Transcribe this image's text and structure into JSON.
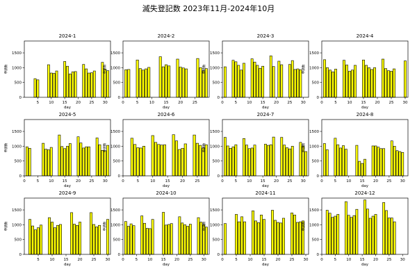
{
  "page": {
    "title": "滅失登記数 2023年11月-2024年10月"
  },
  "colors": {
    "bar_fill": "#ffff00",
    "bar_stroke": "#000000",
    "axis": "#000000"
  },
  "chart_data": [
    {
      "type": "bar",
      "title": "2024-1",
      "xlabel": "day",
      "ylabel": "申請数",
      "xlim": [
        0,
        32
      ],
      "ylim": [
        0,
        1900
      ],
      "xticks": [
        5,
        10,
        15,
        20,
        25,
        30
      ],
      "yticks": [
        0,
        500,
        1000,
        1500
      ],
      "x": [
        4,
        5,
        9,
        10,
        11,
        12,
        15,
        16,
        17,
        18,
        19,
        22,
        23,
        24,
        25,
        26,
        29,
        30,
        31
      ],
      "values": [
        630,
        590,
        1100,
        820,
        810,
        890,
        1210,
        1050,
        790,
        860,
        870,
        1110,
        960,
        820,
        830,
        890,
        1180,
        950,
        900
      ]
    },
    {
      "type": "bar",
      "title": "2024-2",
      "xlabel": "day",
      "ylabel": "申請数",
      "xlim": [
        0,
        30
      ],
      "ylim": [
        0,
        1900
      ],
      "xticks": [
        0,
        5,
        10,
        15,
        20,
        25
      ],
      "yticks": [
        0,
        500,
        1000,
        1500
      ],
      "x": [
        1,
        2,
        5,
        6,
        7,
        8,
        9,
        13,
        14,
        15,
        16,
        19,
        20,
        21,
        22,
        26,
        27,
        28,
        29
      ],
      "values": [
        930,
        940,
        1260,
        970,
        920,
        960,
        1010,
        1370,
        1030,
        1100,
        1060,
        1290,
        1020,
        990,
        960,
        1310,
        1000,
        900,
        970
      ]
    },
    {
      "type": "bar",
      "title": "2024-3",
      "xlabel": "day",
      "ylabel": "申請数",
      "xlim": [
        0,
        32
      ],
      "ylim": [
        0,
        1900
      ],
      "xticks": [
        0,
        5,
        10,
        15,
        20,
        25,
        30
      ],
      "yticks": [
        0,
        500,
        1000,
        1500
      ],
      "x": [
        1,
        4,
        5,
        6,
        7,
        8,
        11,
        12,
        13,
        14,
        15,
        18,
        19,
        21,
        22,
        25,
        26,
        27,
        28,
        29
      ],
      "values": [
        1030,
        1250,
        1200,
        1080,
        920,
        1150,
        1300,
        1190,
        1080,
        980,
        1050,
        1400,
        1040,
        1220,
        1100,
        1110,
        1240,
        940,
        960,
        930
      ]
    },
    {
      "type": "bar",
      "title": "2024-4",
      "xlabel": "day",
      "ylabel": "申請数",
      "xlim": [
        0,
        31
      ],
      "ylim": [
        0,
        1900
      ],
      "xticks": [
        0,
        5,
        10,
        15,
        20,
        25,
        30
      ],
      "yticks": [
        0,
        500,
        1000,
        1500
      ],
      "x": [
        1,
        2,
        3,
        4,
        5,
        8,
        9,
        10,
        11,
        12,
        15,
        16,
        17,
        18,
        19,
        22,
        23,
        24,
        25,
        26,
        30
      ],
      "values": [
        1270,
        1000,
        920,
        860,
        950,
        1250,
        1090,
        880,
        920,
        1080,
        1260,
        1080,
        1000,
        940,
        1000,
        1290,
        970,
        900,
        880,
        960,
        1230
      ]
    },
    {
      "type": "bar",
      "title": "2024-5",
      "xlabel": "day",
      "ylabel": "申請数",
      "xlim": [
        0,
        32
      ],
      "ylim": [
        0,
        1900
      ],
      "xticks": [
        0,
        5,
        10,
        15,
        20,
        25,
        30
      ],
      "yticks": [
        0,
        500,
        1000,
        1500
      ],
      "x": [
        1,
        2,
        7,
        8,
        9,
        10,
        13,
        14,
        15,
        16,
        17,
        20,
        21,
        22,
        23,
        24,
        27,
        28,
        29,
        30,
        31
      ],
      "values": [
        980,
        930,
        1100,
        900,
        880,
        960,
        1380,
        990,
        920,
        1000,
        1090,
        1320,
        1110,
        940,
        980,
        980,
        1280,
        1050,
        860,
        850,
        1030
      ]
    },
    {
      "type": "bar",
      "title": "2024-6",
      "xlabel": "day",
      "ylabel": "申請数",
      "xlim": [
        0,
        29
      ],
      "ylim": [
        0,
        1900
      ],
      "xticks": [
        0,
        5,
        10,
        15,
        20,
        25
      ],
      "yticks": [
        0,
        500,
        1000,
        1500
      ],
      "x": [
        3,
        4,
        5,
        6,
        7,
        10,
        11,
        12,
        13,
        14,
        17,
        18,
        19,
        20,
        21,
        24,
        25,
        26,
        27,
        28
      ],
      "values": [
        1270,
        1060,
        950,
        940,
        1000,
        1360,
        1130,
        1060,
        1040,
        1050,
        1390,
        1180,
        890,
        930,
        1080,
        1380,
        1100,
        1030,
        940,
        1050
      ]
    },
    {
      "type": "bar",
      "title": "2024-7",
      "xlabel": "day",
      "ylabel": "申請数",
      "xlim": [
        0,
        32
      ],
      "ylim": [
        0,
        1900
      ],
      "xticks": [
        0,
        5,
        10,
        15,
        20,
        25,
        30
      ],
      "yticks": [
        0,
        500,
        1000,
        1500
      ],
      "x": [
        1,
        2,
        3,
        4,
        5,
        8,
        9,
        10,
        11,
        12,
        16,
        17,
        18,
        19,
        22,
        23,
        24,
        25,
        26,
        29,
        30,
        31
      ],
      "values": [
        1300,
        1010,
        930,
        980,
        1050,
        1260,
        1040,
        920,
        940,
        1040,
        1070,
        1030,
        1050,
        1310,
        1300,
        1040,
        950,
        910,
        1000,
        1130,
        1000,
        820
      ]
    },
    {
      "type": "bar",
      "title": "2024-8",
      "xlabel": "day",
      "ylabel": "申請数",
      "xlim": [
        0,
        32
      ],
      "ylim": [
        0,
        1900
      ],
      "xticks": [
        0,
        5,
        10,
        15,
        20,
        25,
        30
      ],
      "yticks": [
        0,
        500,
        1000,
        1500
      ],
      "x": [
        1,
        2,
        5,
        6,
        7,
        8,
        9,
        13,
        14,
        15,
        16,
        19,
        20,
        21,
        22,
        23,
        26,
        27,
        28,
        29,
        30
      ],
      "values": [
        1090,
        880,
        1270,
        1050,
        940,
        1020,
        900,
        1030,
        490,
        420,
        560,
        1010,
        1010,
        970,
        920,
        920,
        1180,
        1000,
        850,
        820,
        790
      ]
    },
    {
      "type": "bar",
      "title": "2024-9",
      "xlabel": "day",
      "ylabel": "申請数",
      "xlim": [
        0,
        31
      ],
      "ylim": [
        0,
        1900
      ],
      "xticks": [
        5,
        10,
        15,
        20,
        25,
        30
      ],
      "yticks": [
        0,
        500,
        1000,
        1500
      ],
      "x": [
        2,
        3,
        4,
        5,
        6,
        9,
        10,
        11,
        12,
        13,
        17,
        18,
        19,
        20,
        24,
        25,
        26,
        27,
        30
      ],
      "values": [
        1180,
        960,
        830,
        900,
        990,
        1240,
        1090,
        900,
        980,
        1010,
        1410,
        1020,
        980,
        1090,
        1410,
        1010,
        930,
        980,
        1180
      ]
    },
    {
      "type": "bar",
      "title": "2024-10",
      "xlabel": "day",
      "ylabel": "申請数",
      "xlim": [
        0,
        32
      ],
      "ylim": [
        0,
        1900
      ],
      "xticks": [
        0,
        5,
        10,
        15,
        20,
        25,
        30
      ],
      "yticks": [
        0,
        500,
        1000,
        1500
      ],
      "x": [
        1,
        2,
        3,
        4,
        7,
        8,
        9,
        10,
        11,
        15,
        16,
        17,
        18,
        21,
        22,
        23,
        24,
        25,
        28,
        29,
        30,
        31
      ],
      "values": [
        1110,
        950,
        1030,
        970,
        1300,
        1050,
        880,
        870,
        1180,
        1420,
        990,
        1010,
        1040,
        1270,
        1060,
        1000,
        950,
        1020,
        1240,
        1090,
        1000,
        920
      ]
    },
    {
      "type": "bar",
      "title": "2024-11",
      "xlabel": "day",
      "ylabel": "申請数",
      "xlim": [
        0,
        31
      ],
      "ylim": [
        0,
        1900
      ],
      "xticks": [
        0,
        5,
        10,
        15,
        20,
        25,
        30
      ],
      "yticks": [
        0,
        500,
        1000,
        1500
      ],
      "x": [
        1,
        5,
        6,
        7,
        8,
        11,
        12,
        13,
        14,
        15,
        18,
        19,
        20,
        21,
        22,
        25,
        26,
        27,
        28,
        29
      ],
      "values": [
        1040,
        1350,
        1100,
        1270,
        1100,
        1470,
        1130,
        1070,
        1330,
        1180,
        1490,
        1150,
        1080,
        1060,
        1220,
        1400,
        1330,
        1080,
        1100,
        1130
      ]
    },
    {
      "type": "bar",
      "title": "2024-12",
      "xlabel": "day",
      "ylabel": "申請数",
      "xlim": [
        0,
        32
      ],
      "ylim": [
        0,
        1900
      ],
      "xticks": [
        0,
        5,
        10,
        15,
        20,
        25,
        30
      ],
      "yticks": [
        0,
        500,
        1000,
        1500
      ],
      "x": [
        2,
        3,
        4,
        5,
        6,
        9,
        10,
        11,
        12,
        13,
        16,
        17,
        18,
        19,
        20,
        23,
        24,
        25,
        26,
        27
      ],
      "values": [
        1490,
        1390,
        1250,
        1290,
        1350,
        1780,
        1320,
        1250,
        1310,
        1520,
        1840,
        1530,
        1220,
        1290,
        1350,
        1750,
        1480,
        1230,
        1230,
        1100
      ]
    }
  ]
}
